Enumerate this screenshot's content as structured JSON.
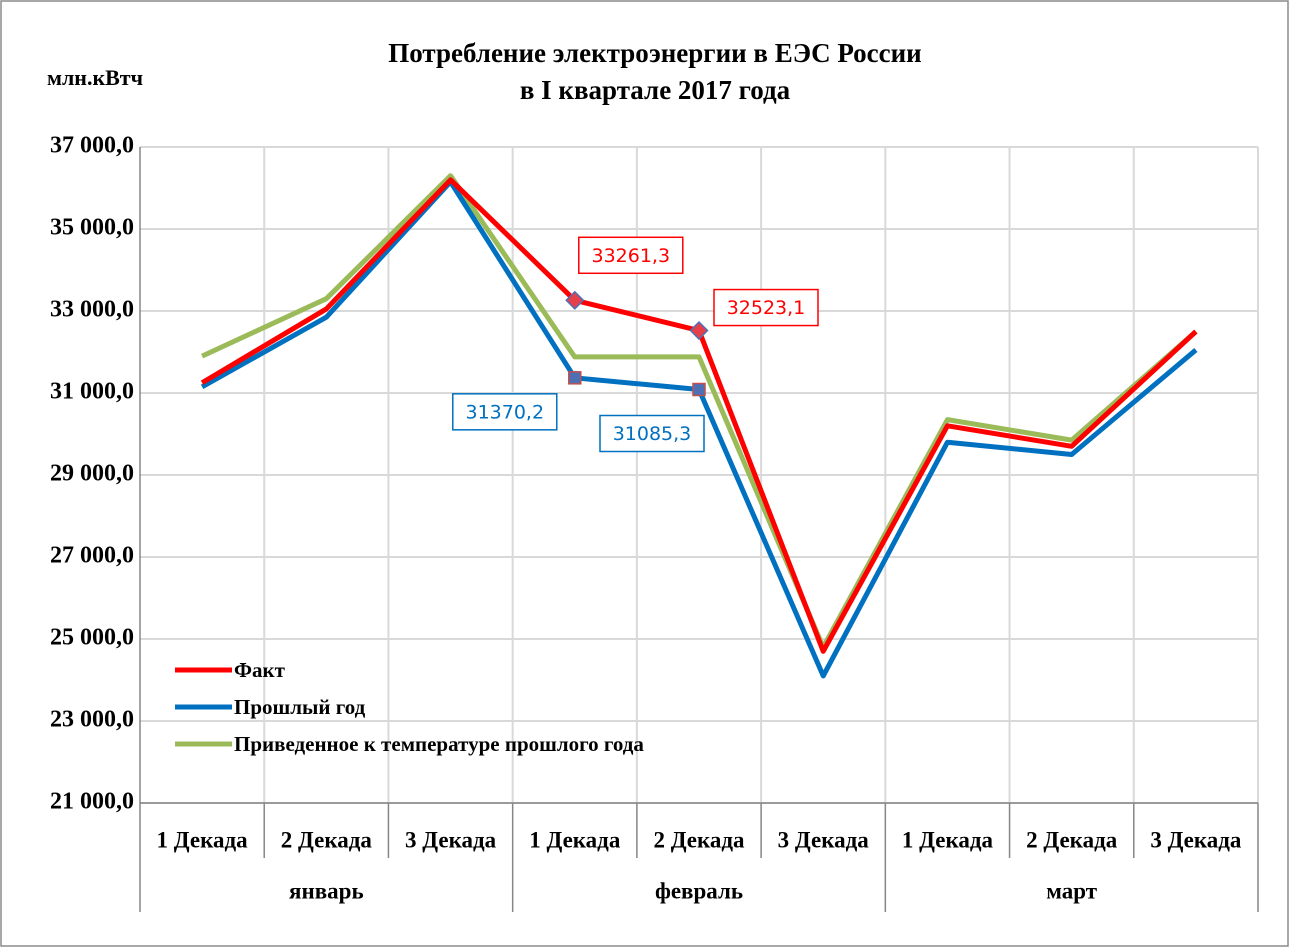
{
  "chart_data": {
    "type": "line",
    "title": [
      "Потребление электроэнергии в ЕЭС России",
      "в I квартале 2017 года"
    ],
    "y_label": "млн.кВтч",
    "categories": [
      "1 Декада",
      "2 Декада",
      "3 Декада",
      "1 Декада",
      "2 Декада",
      "3 Декада",
      "1 Декада",
      "2 Декада",
      "3 Декада"
    ],
    "months": [
      "январь",
      "февраль",
      "март"
    ],
    "series": [
      {
        "name": "Факт",
        "color": "#ff0000",
        "values": [
          31250,
          33050,
          36200,
          33261.3,
          32523.1,
          24700,
          30200,
          29700,
          32500
        ],
        "value_labels": [
          null,
          null,
          null,
          "33261,3",
          "32523,1",
          null,
          null,
          null,
          null
        ]
      },
      {
        "name": "Прошлый год",
        "color": "#0070c0",
        "values": [
          31150,
          32850,
          36150,
          31370.2,
          31085.3,
          24100,
          29800,
          29500,
          32050
        ],
        "value_labels": [
          null,
          null,
          null,
          "31370,2",
          "31085,3",
          null,
          null,
          null,
          null
        ]
      },
      {
        "name": "Приведенное к температуре прошлого года",
        "color": "#9bbb59",
        "values": [
          31900,
          33300,
          36300,
          31880,
          31880,
          24800,
          30350,
          29850,
          32500
        ]
      }
    ],
    "ylim": [
      21000,
      37000
    ],
    "yticks": [
      {
        "value": 21000,
        "label": "21 000,0"
      },
      {
        "value": 23000,
        "label": "23 000,0"
      },
      {
        "value": 25000,
        "label": "25 000,0"
      },
      {
        "value": 27000,
        "label": "27 000,0"
      },
      {
        "value": 29000,
        "label": "29 000,0"
      },
      {
        "value": 31000,
        "label": "31 000,0"
      },
      {
        "value": 33000,
        "label": "33 000,0"
      },
      {
        "value": 35000,
        "label": "35 000,0"
      },
      {
        "value": 37000,
        "label": "37 000,0"
      }
    ],
    "grid": true,
    "legend": "lower left"
  }
}
